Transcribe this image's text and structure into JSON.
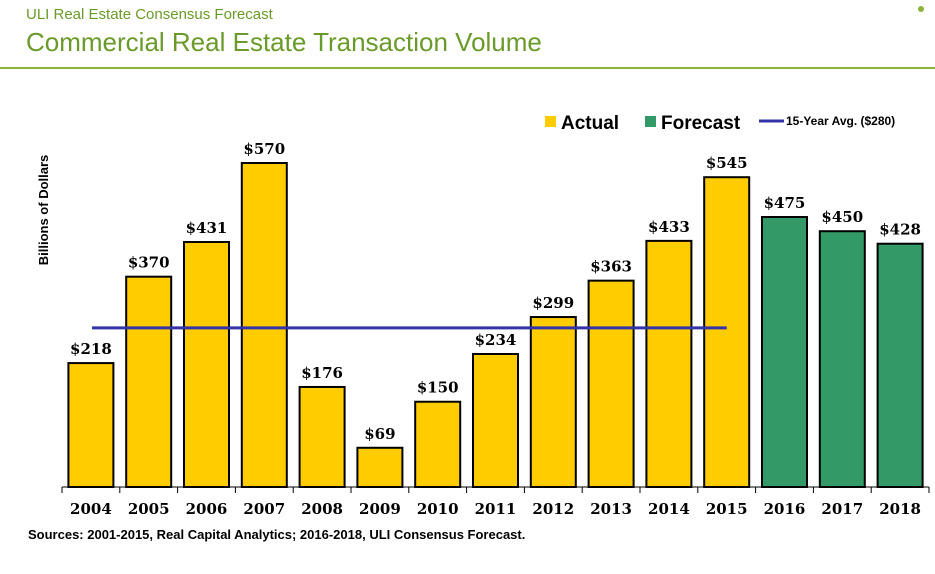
{
  "header": {
    "eyebrow": "ULI Real Estate Consensus Forecast",
    "title": "Commercial Real Estate Transaction Volume"
  },
  "colors": {
    "actual": "#ffcc00",
    "forecast": "#339966",
    "average_line": "#3333aa",
    "header_green": "#6a9a2a"
  },
  "chart_data": {
    "type": "bar",
    "ylabel": "Billions of Dollars",
    "xlabel": "",
    "ylim": [
      0,
      580
    ],
    "categories": [
      "2004",
      "2005",
      "2006",
      "2007",
      "2008",
      "2009",
      "2010",
      "2011",
      "2012",
      "2013",
      "2014",
      "2015",
      "2016",
      "2017",
      "2018"
    ],
    "values": [
      218,
      370,
      431,
      570,
      176,
      69,
      150,
      234,
      299,
      363,
      433,
      545,
      475,
      450,
      428
    ],
    "value_labels": [
      "$218",
      "$370",
      "$431",
      "$570",
      "$176",
      "$69",
      "$150",
      "$234",
      "$299",
      "$363",
      "$433",
      "$545",
      "$475",
      "$450",
      "$428"
    ],
    "series_type": [
      "Actual",
      "Actual",
      "Actual",
      "Actual",
      "Actual",
      "Actual",
      "Actual",
      "Actual",
      "Actual",
      "Actual",
      "Actual",
      "Actual",
      "Forecast",
      "Forecast",
      "Forecast"
    ],
    "reference_line": {
      "label": "15-Year Avg. ($280)",
      "value": 280,
      "from_category": "2004",
      "to_category": "2015"
    },
    "legend": {
      "placement": "top-right",
      "items": [
        {
          "label": "Actual",
          "kind": "bar",
          "color": "#ffcc00"
        },
        {
          "label": "Forecast",
          "kind": "bar",
          "color": "#339966"
        },
        {
          "label": "15-Year Avg. ($280)",
          "kind": "line",
          "color": "#3333aa"
        }
      ]
    }
  },
  "footer": {
    "source": "Sources: 2001-2015, Real Capital Analytics; 2016-2018, ULI Consensus Forecast."
  }
}
